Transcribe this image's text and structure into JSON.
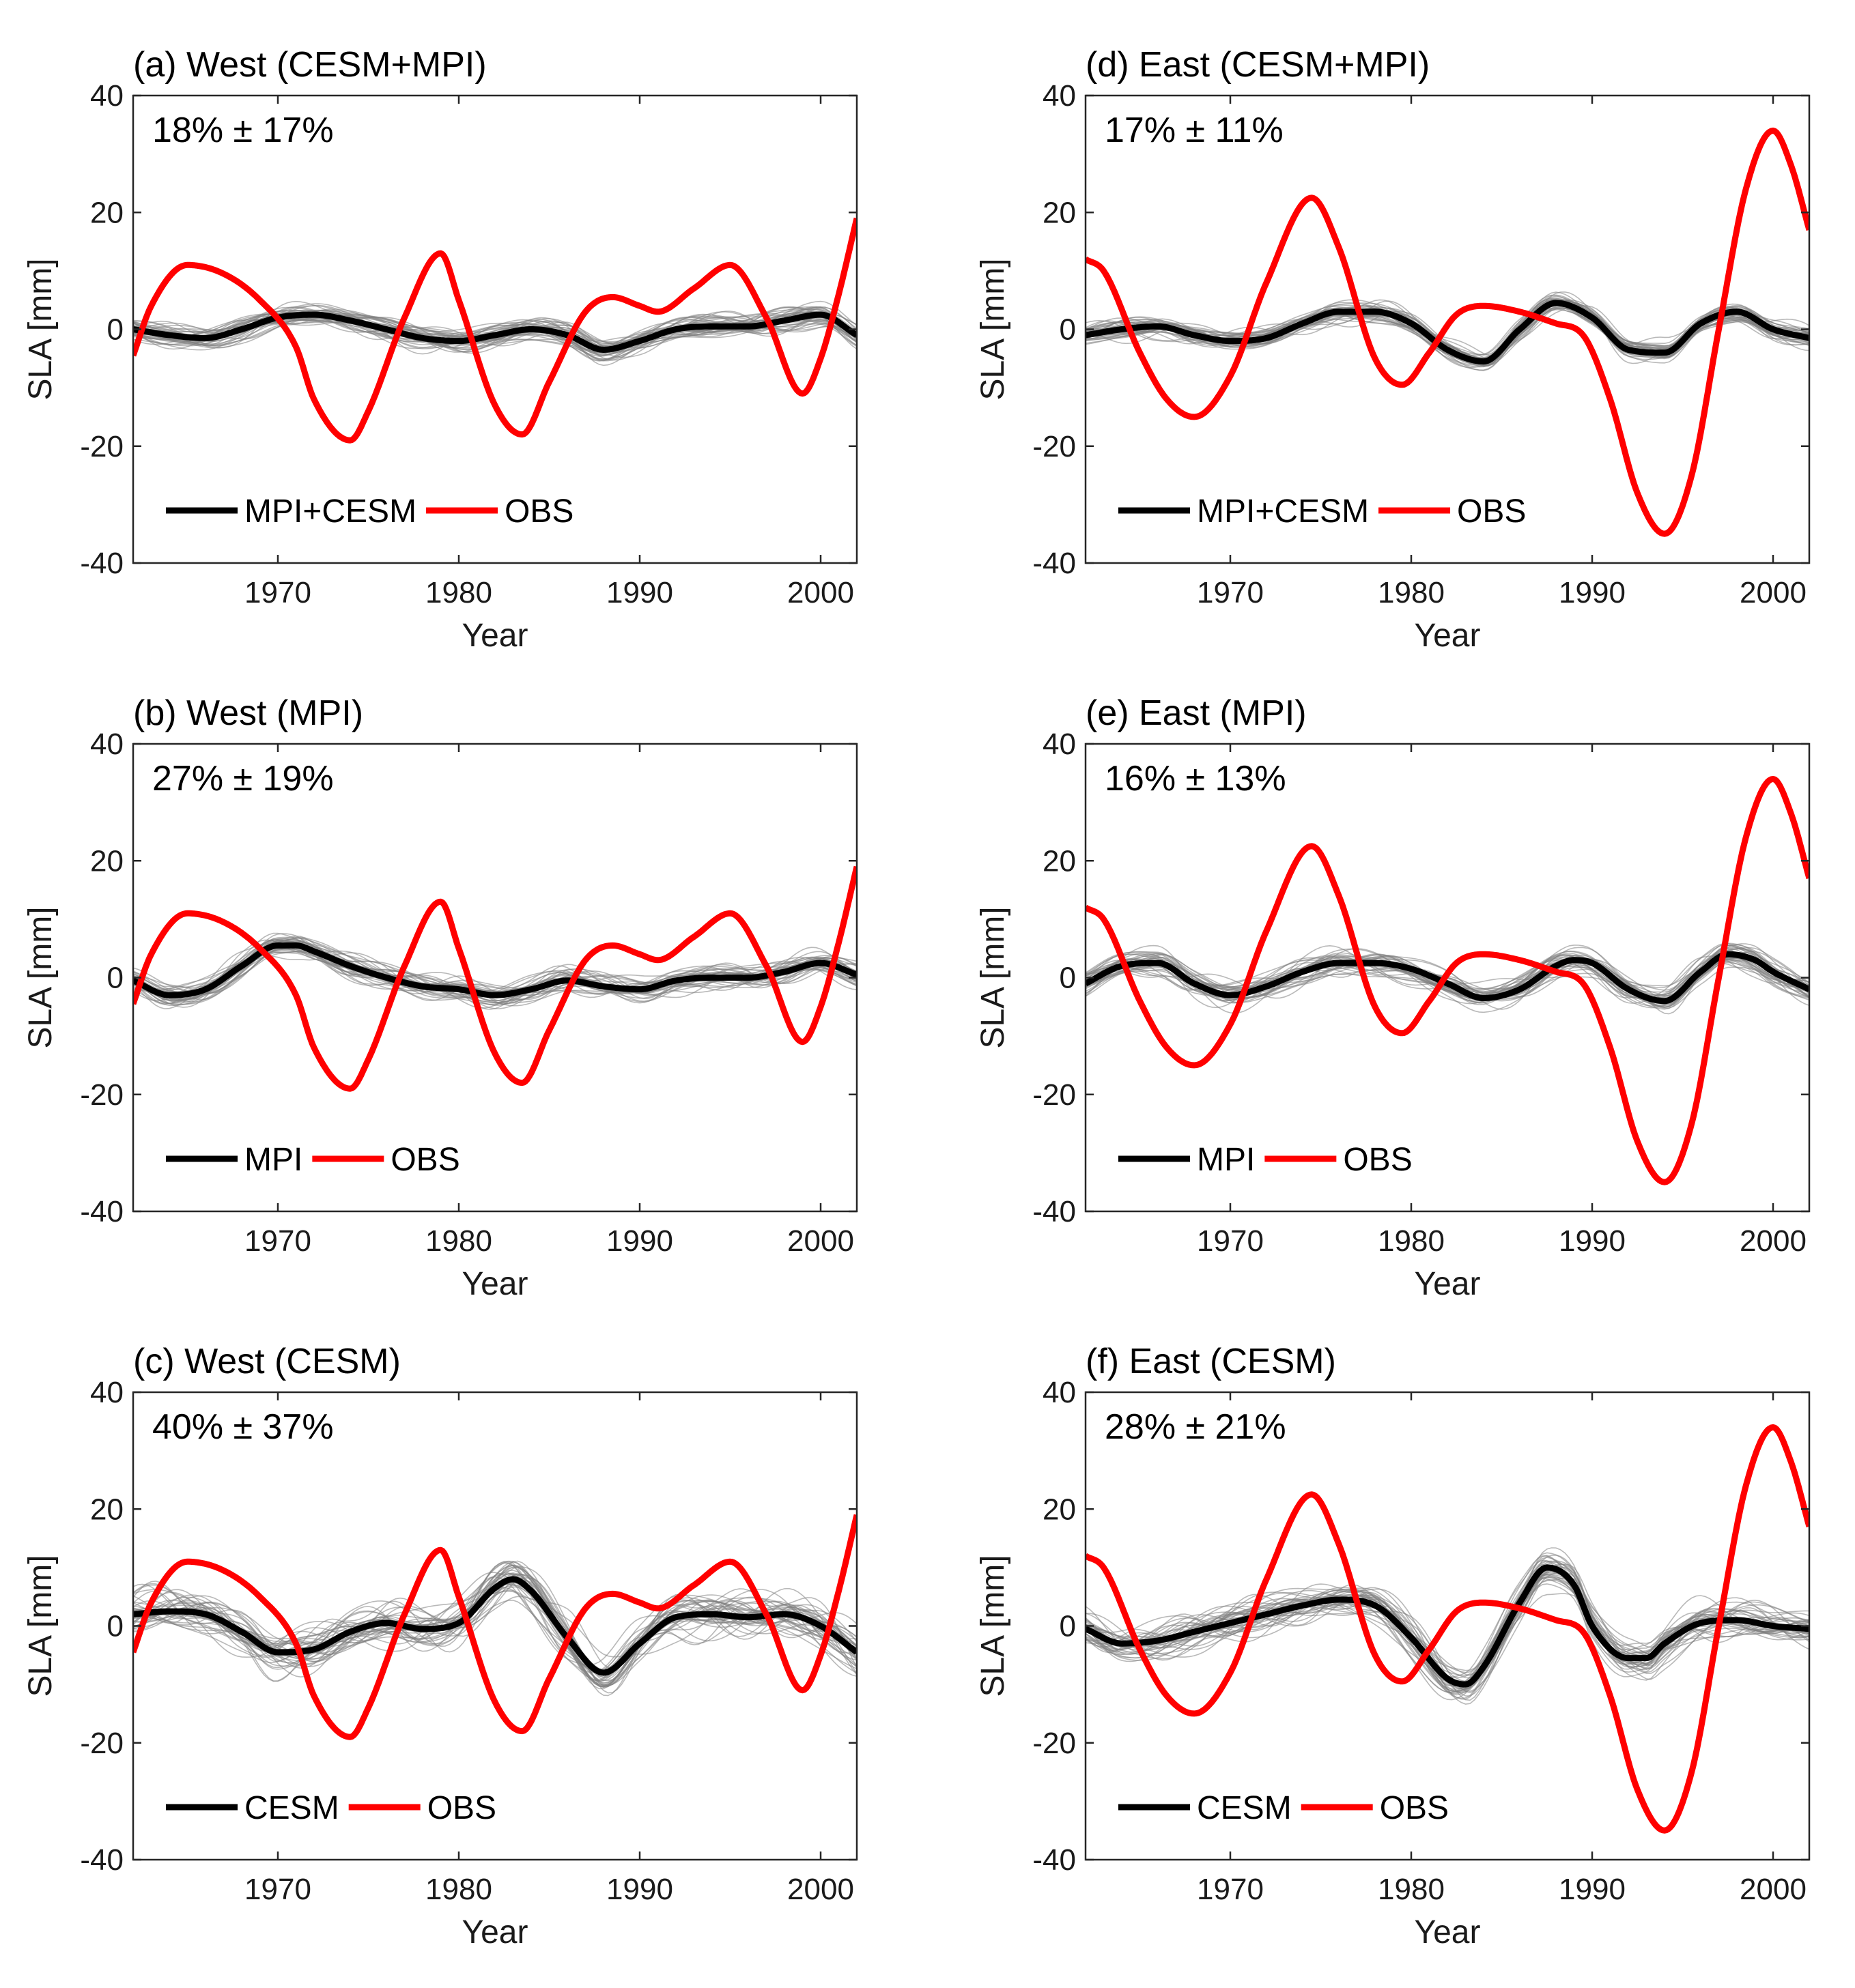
{
  "figure": {
    "colors": {
      "obs": "#ff0000",
      "model_mean": "#000000",
      "members": "#7f7f7f",
      "axes": "#262626"
    }
  },
  "chart_data": [
    {
      "id": "a",
      "type": "line",
      "title": "(a) West (CESM+MPI)",
      "stat_label": "18% ± 17%",
      "xlabel": "Year",
      "ylabel": "SLA [mm]",
      "xlim": [
        1962,
        2002
      ],
      "ylim": [
        -40,
        40
      ],
      "xticks": [
        1970,
        1980,
        1990,
        2000
      ],
      "yticks": [
        -40,
        -20,
        0,
        20,
        40
      ],
      "legend": {
        "entries": [
          "MPI+CESM",
          "OBS"
        ],
        "position": "lower-left"
      },
      "ensemble": {
        "members": 40,
        "spread_mm": 2.0
      },
      "series": [
        {
          "name": "MPI+CESM",
          "color": "#000000",
          "x": [
            1962,
            1964,
            1966,
            1968,
            1970,
            1972,
            1974,
            1976,
            1978,
            1980,
            1982,
            1984,
            1986,
            1988,
            1990,
            1992,
            1994,
            1996,
            1998,
            2000,
            2002
          ],
          "y": [
            0,
            -1,
            -1.5,
            0,
            2,
            2.5,
            1.5,
            0,
            -1.5,
            -2,
            -1,
            0,
            -1,
            -3.5,
            -2,
            0,
            0.5,
            0.5,
            1.5,
            2.5,
            -1
          ]
        },
        {
          "name": "OBS",
          "color": "#ff0000",
          "x": [
            1962,
            1963,
            1965,
            1967,
            1969,
            1971,
            1972,
            1974,
            1975,
            1977,
            1979,
            1980,
            1982,
            1983.5,
            1985,
            1987,
            1988.5,
            1990,
            1991,
            1993,
            1995,
            1997,
            1999,
            2000,
            2001,
            2002
          ],
          "y": [
            -4.5,
            4,
            11,
            9.5,
            5,
            -3,
            -12,
            -19,
            -14,
            2,
            13,
            5,
            -13,
            -18,
            -9,
            3,
            5.5,
            4,
            3,
            7,
            11,
            2,
            -11,
            -5,
            6,
            19
          ]
        }
      ]
    },
    {
      "id": "d",
      "type": "line",
      "title": "(d) East (CESM+MPI)",
      "stat_label": "17% ± 11%",
      "xlabel": "Year",
      "ylabel": "SLA [mm]",
      "xlim": [
        1962,
        2002
      ],
      "ylim": [
        -40,
        40
      ],
      "xticks": [
        1970,
        1980,
        1990,
        2000
      ],
      "yticks": [
        -40,
        -20,
        0,
        20,
        40
      ],
      "legend": {
        "entries": [
          "MPI+CESM",
          "OBS"
        ],
        "position": "lower-left"
      },
      "ensemble": {
        "members": 40,
        "spread_mm": 2.0
      },
      "series": [
        {
          "name": "MPI+CESM",
          "color": "#000000",
          "x": [
            1962,
            1964,
            1966,
            1968,
            1970,
            1972,
            1974,
            1976,
            1978,
            1980,
            1982,
            1984,
            1986,
            1988,
            1990,
            1992,
            1994,
            1996,
            1998,
            2000,
            2002
          ],
          "y": [
            -1,
            0,
            0.5,
            -1,
            -2,
            -1.5,
            1,
            3,
            3,
            1,
            -3.5,
            -5.5,
            0,
            4.5,
            2,
            -3.5,
            -4,
            1,
            3,
            0,
            -1.5
          ]
        },
        {
          "name": "OBS",
          "color": "#ff0000",
          "x": [
            1962,
            1963,
            1965,
            1966.5,
            1968,
            1970,
            1972,
            1974.5,
            1976,
            1978,
            1979.5,
            1981,
            1982.5,
            1984,
            1986,
            1988,
            1989.5,
            1991,
            1992.5,
            1994,
            1995.5,
            1997,
            1998.5,
            2000,
            2001,
            2002
          ],
          "y": [
            12,
            10,
            -4,
            -12,
            -15,
            -8,
            8,
            22.5,
            14,
            -5,
            -9.5,
            -4,
            2.5,
            4,
            3,
            1,
            -1,
            -12,
            -28,
            -35,
            -25,
            0,
            24,
            34,
            28,
            17
          ]
        }
      ]
    },
    {
      "id": "b",
      "type": "line",
      "title": "(b) West (MPI)",
      "stat_label": "27% ± 19%",
      "xlabel": "Year",
      "ylabel": "SLA [mm]",
      "xlim": [
        1962,
        2002
      ],
      "ylim": [
        -40,
        40
      ],
      "xticks": [
        1970,
        1980,
        1990,
        2000
      ],
      "yticks": [
        -40,
        -20,
        0,
        20,
        40
      ],
      "legend": {
        "entries": [
          "MPI",
          "OBS"
        ],
        "position": "lower-left"
      },
      "ensemble": {
        "members": 40,
        "spread_mm": 2.2
      },
      "series": [
        {
          "name": "MPI",
          "color": "#000000",
          "x": [
            1962,
            1964,
            1966,
            1968,
            1970,
            1971,
            1972,
            1974,
            1976,
            1978,
            1980,
            1982,
            1984,
            1986,
            1988,
            1990,
            1992,
            1994,
            1996,
            1998,
            2000,
            2002
          ],
          "y": [
            -0.5,
            -3,
            -2,
            2,
            5.5,
            5.5,
            4.5,
            2,
            0,
            -1.5,
            -2,
            -3,
            -2,
            -0.5,
            -1.5,
            -2,
            -0.5,
            0,
            0,
            1,
            2.5,
            0.5
          ]
        },
        {
          "name": "OBS",
          "color": "#ff0000",
          "x": [
            1962,
            1963,
            1965,
            1967,
            1969,
            1971,
            1972,
            1974,
            1975,
            1977,
            1979,
            1980,
            1982,
            1983.5,
            1985,
            1987,
            1988.5,
            1990,
            1991,
            1993,
            1995,
            1997,
            1999,
            2000,
            2001,
            2002
          ],
          "y": [
            -4.5,
            4,
            11,
            9.5,
            5,
            -3,
            -12,
            -19,
            -14,
            2,
            13,
            5,
            -13,
            -18,
            -9,
            3,
            5.5,
            4,
            3,
            7,
            11,
            2,
            -11,
            -5,
            6,
            19
          ]
        }
      ]
    },
    {
      "id": "e",
      "type": "line",
      "title": "(e) East (MPI)",
      "stat_label": "16% ± 13%",
      "xlabel": "Year",
      "ylabel": "SLA [mm]",
      "xlim": [
        1962,
        2002
      ],
      "ylim": [
        -40,
        40
      ],
      "xticks": [
        1970,
        1980,
        1990,
        2000
      ],
      "yticks": [
        -40,
        -20,
        0,
        20,
        40
      ],
      "legend": {
        "entries": [
          "MPI",
          "OBS"
        ],
        "position": "lower-left"
      },
      "ensemble": {
        "members": 40,
        "spread_mm": 2.3
      },
      "series": [
        {
          "name": "MPI",
          "color": "#000000",
          "x": [
            1962,
            1964,
            1966,
            1968,
            1970,
            1972,
            1974,
            1976,
            1978,
            1980,
            1982,
            1984,
            1986,
            1988,
            1989,
            1990,
            1992,
            1994,
            1996,
            1997.5,
            1999,
            2000,
            2002
          ],
          "y": [
            -1,
            2,
            2.5,
            -1,
            -3,
            -1.5,
            1,
            2.5,
            2.5,
            1.5,
            -1,
            -3.5,
            -2,
            2,
            3,
            2.5,
            -2,
            -4,
            1,
            4,
            3,
            1,
            -2
          ]
        },
        {
          "name": "OBS",
          "color": "#ff0000",
          "x": [
            1962,
            1963,
            1965,
            1966.5,
            1968,
            1970,
            1972,
            1974.5,
            1976,
            1978,
            1979.5,
            1981,
            1982.5,
            1984,
            1986,
            1988,
            1989.5,
            1991,
            1992.5,
            1994,
            1995.5,
            1997,
            1998.5,
            2000,
            2001,
            2002
          ],
          "y": [
            12,
            10,
            -4,
            -12,
            -15,
            -8,
            8,
            22.5,
            14,
            -5,
            -9.5,
            -4,
            2.5,
            4,
            3,
            1,
            -1,
            -12,
            -28,
            -35,
            -25,
            0,
            24,
            34,
            28,
            17
          ]
        }
      ]
    },
    {
      "id": "c",
      "type": "line",
      "title": "(c) West (CESM)",
      "stat_label": "40% ± 37%",
      "xlabel": "Year",
      "ylabel": "SLA [mm]",
      "xlim": [
        1962,
        2002
      ],
      "ylim": [
        -40,
        40
      ],
      "xticks": [
        1970,
        1980,
        1990,
        2000
      ],
      "yticks": [
        -40,
        -20,
        0,
        20,
        40
      ],
      "legend": {
        "entries": [
          "CESM",
          "OBS"
        ],
        "position": "lower-left"
      },
      "ensemble": {
        "members": 40,
        "spread_mm": 4.0
      },
      "series": [
        {
          "name": "CESM",
          "color": "#000000",
          "x": [
            1962,
            1964,
            1966,
            1968,
            1970,
            1972,
            1974,
            1976,
            1978,
            1980,
            1982,
            1983,
            1984,
            1986,
            1988,
            1990,
            1992,
            1994,
            1996,
            1998,
            2000,
            2002
          ],
          "y": [
            2,
            2.5,
            2,
            -1,
            -4.5,
            -4,
            -1,
            0.5,
            -0.5,
            0.5,
            6.5,
            8,
            6,
            -2,
            -8,
            -3,
            1.5,
            2,
            1.5,
            2,
            0,
            -4.5
          ]
        },
        {
          "name": "OBS",
          "color": "#ff0000",
          "x": [
            1962,
            1963,
            1965,
            1967,
            1969,
            1971,
            1972,
            1974,
            1975,
            1977,
            1979,
            1980,
            1982,
            1983.5,
            1985,
            1987,
            1988.5,
            1990,
            1991,
            1993,
            1995,
            1997,
            1999,
            2000,
            2001,
            2002
          ],
          "y": [
            -4.5,
            4,
            11,
            9.5,
            5,
            -3,
            -12,
            -19,
            -14,
            2,
            13,
            5,
            -13,
            -18,
            -9,
            3,
            5.5,
            4,
            3,
            7,
            11,
            2,
            -11,
            -5,
            6,
            19
          ]
        }
      ]
    },
    {
      "id": "f",
      "type": "line",
      "title": "(f) East (CESM)",
      "stat_label": "28% ± 21%",
      "xlabel": "Year",
      "ylabel": "SLA [mm]",
      "xlim": [
        1962,
        2002
      ],
      "ylim": [
        -40,
        40
      ],
      "xticks": [
        1970,
        1980,
        1990,
        2000
      ],
      "yticks": [
        -40,
        -20,
        0,
        20,
        40
      ],
      "legend": {
        "entries": [
          "CESM",
          "OBS"
        ],
        "position": "lower-left"
      },
      "ensemble": {
        "members": 40,
        "spread_mm": 3.5
      },
      "series": [
        {
          "name": "CESM",
          "color": "#000000",
          "x": [
            1962,
            1964,
            1966,
            1968,
            1970,
            1972,
            1974,
            1976,
            1978,
            1980,
            1982,
            1983,
            1984,
            1986,
            1987.5,
            1989,
            1990,
            1992,
            1993,
            1994,
            1996,
            1998,
            2000,
            2002
          ],
          "y": [
            -0.5,
            -3,
            -2.5,
            -1,
            0.5,
            2,
            3.5,
            4.5,
            3.5,
            -2,
            -9,
            -10,
            -7,
            4,
            10,
            7,
            0,
            -5.5,
            -5.5,
            -3,
            0.5,
            1,
            0,
            -0.5
          ]
        },
        {
          "name": "OBS",
          "color": "#ff0000",
          "x": [
            1962,
            1963,
            1965,
            1966.5,
            1968,
            1970,
            1972,
            1974.5,
            1976,
            1978,
            1979.5,
            1981,
            1982.5,
            1984,
            1986,
            1988,
            1989.5,
            1991,
            1992.5,
            1994,
            1995.5,
            1997,
            1998.5,
            2000,
            2001,
            2002
          ],
          "y": [
            12,
            10,
            -4,
            -12,
            -15,
            -8,
            8,
            22.5,
            14,
            -5,
            -9.5,
            -4,
            2.5,
            4,
            3,
            1,
            -1,
            -12,
            -28,
            -35,
            -25,
            0,
            24,
            34,
            28,
            17
          ]
        }
      ]
    }
  ]
}
